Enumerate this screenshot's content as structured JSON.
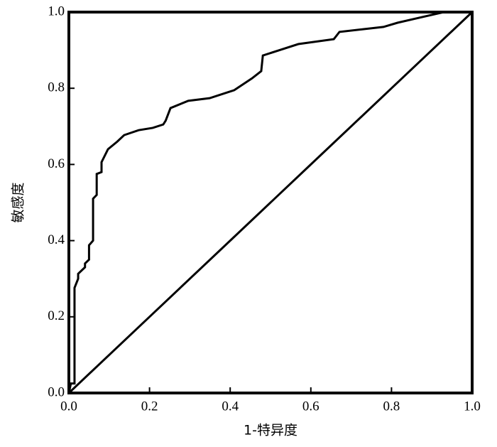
{
  "chart_data": {
    "type": "line",
    "x_label": "1-特异度",
    "y_label": "敏感度",
    "xlim": [
      0,
      1
    ],
    "ylim": [
      0,
      1
    ],
    "xticks": [
      {
        "value": 0,
        "label": "0.0"
      },
      {
        "value": 0.2,
        "label": "0.2"
      },
      {
        "value": 0.4,
        "label": "0.4"
      },
      {
        "value": 0.6,
        "label": "0.6"
      },
      {
        "value": 0.8,
        "label": "0.8"
      },
      {
        "value": 1,
        "label": "1.0"
      }
    ],
    "yticks": [
      {
        "value": 0,
        "label": "0.0"
      },
      {
        "value": 0.2,
        "label": "0.2"
      },
      {
        "value": 0.4,
        "label": "0.4"
      },
      {
        "value": 0.6,
        "label": "0.6"
      },
      {
        "value": 0.8,
        "label": "0.8"
      },
      {
        "value": 1,
        "label": "1.0"
      }
    ],
    "grid": false,
    "series": [
      {
        "color": "#000000",
        "x": [
          0,
          0.005,
          0.014,
          0.014,
          0.023,
          0.023,
          0.04,
          0.04,
          0.05,
          0.05,
          0.06,
          0.06,
          0.069,
          0.069,
          0.081,
          0.081,
          0.097,
          0.12,
          0.137,
          0.173,
          0.208,
          0.234,
          0.24,
          0.252,
          0.296,
          0.349,
          0.41,
          0.454,
          0.477,
          0.481,
          0.525,
          0.569,
          0.657,
          0.671,
          0.78,
          0.815,
          0.868,
          0.93,
          1
        ],
        "values": [
          0,
          0.025,
          0.025,
          0.276,
          0.3,
          0.313,
          0.33,
          0.34,
          0.35,
          0.388,
          0.4,
          0.51,
          0.52,
          0.575,
          0.58,
          0.606,
          0.64,
          0.66,
          0.677,
          0.69,
          0.696,
          0.705,
          0.715,
          0.748,
          0.767,
          0.774,
          0.795,
          0.826,
          0.845,
          0.886,
          0.901,
          0.916,
          0.929,
          0.948,
          0.961,
          0.972,
          0.985,
          1,
          1
        ]
      },
      {
        "color": "#000000",
        "x": [
          0,
          0.2,
          0.4,
          0.6,
          0.8,
          1
        ],
        "values": [
          0,
          0.2,
          0.4,
          0.6,
          0.8,
          1
        ]
      }
    ]
  }
}
